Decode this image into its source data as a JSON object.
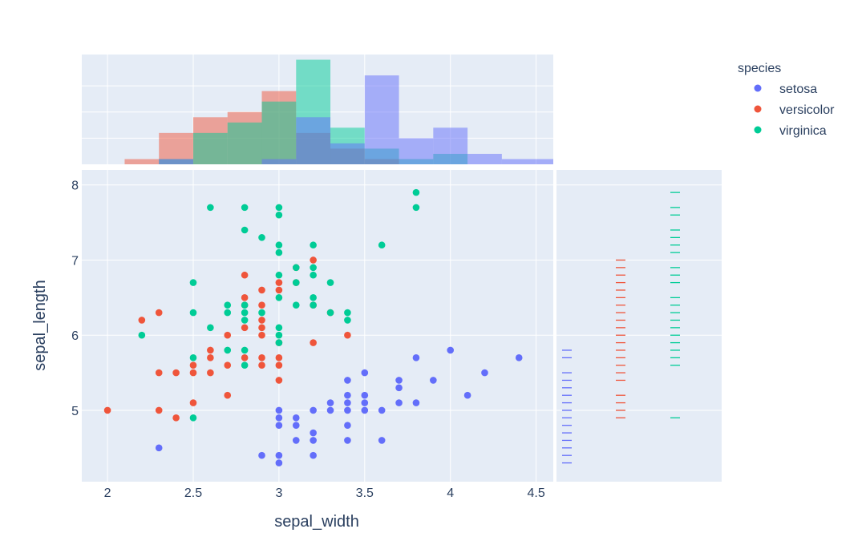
{
  "chart_data": {
    "type": "scatter",
    "title": "",
    "xlabel": "sepal_width",
    "ylabel": "sepal_length",
    "xlim": [
      1.85,
      4.6
    ],
    "ylim": [
      4.05,
      8.2
    ],
    "x_ticks": [
      "2",
      "2.5",
      "3",
      "3.5",
      "4",
      "4.5"
    ],
    "x_tick_values": [
      2,
      2.5,
      3,
      3.5,
      4,
      4.5
    ],
    "y_ticks": [
      "5",
      "6",
      "7",
      "8"
    ],
    "y_tick_values": [
      5,
      6,
      7,
      8
    ],
    "grid": true,
    "legend": {
      "title": "species",
      "position": "top-right",
      "entries": [
        "setosa",
        "versicolor",
        "virginica"
      ]
    },
    "series": [
      {
        "name": "setosa",
        "color": "#636efa",
        "points": [
          [
            2.3,
            4.5
          ],
          [
            2.9,
            4.4
          ],
          [
            3.0,
            4.3
          ],
          [
            3.0,
            4.4
          ],
          [
            3.0,
            4.8
          ],
          [
            3.0,
            4.9
          ],
          [
            3.0,
            5.0
          ],
          [
            3.1,
            4.6
          ],
          [
            3.1,
            4.8
          ],
          [
            3.1,
            4.9
          ],
          [
            3.2,
            4.4
          ],
          [
            3.2,
            4.6
          ],
          [
            3.2,
            4.7
          ],
          [
            3.2,
            5.0
          ],
          [
            3.3,
            5.0
          ],
          [
            3.3,
            5.1
          ],
          [
            3.4,
            4.6
          ],
          [
            3.4,
            4.8
          ],
          [
            3.4,
            5.0
          ],
          [
            3.4,
            5.1
          ],
          [
            3.4,
            5.2
          ],
          [
            3.4,
            5.4
          ],
          [
            3.5,
            5.0
          ],
          [
            3.5,
            5.1
          ],
          [
            3.5,
            5.2
          ],
          [
            3.5,
            5.5
          ],
          [
            3.6,
            4.6
          ],
          [
            3.6,
            5.0
          ],
          [
            3.7,
            5.1
          ],
          [
            3.7,
            5.3
          ],
          [
            3.7,
            5.4
          ],
          [
            3.8,
            5.1
          ],
          [
            3.8,
            5.7
          ],
          [
            3.9,
            5.4
          ],
          [
            4.0,
            5.8
          ],
          [
            4.1,
            5.2
          ],
          [
            4.2,
            5.5
          ],
          [
            4.4,
            5.7
          ]
        ]
      },
      {
        "name": "versicolor",
        "color": "#ef553b",
        "points": [
          [
            2.0,
            5.0
          ],
          [
            2.2,
            6.2
          ],
          [
            2.3,
            5.0
          ],
          [
            2.3,
            5.5
          ],
          [
            2.3,
            6.3
          ],
          [
            2.4,
            4.9
          ],
          [
            2.4,
            5.5
          ],
          [
            2.5,
            5.1
          ],
          [
            2.5,
            5.5
          ],
          [
            2.5,
            5.6
          ],
          [
            2.6,
            5.5
          ],
          [
            2.6,
            5.7
          ],
          [
            2.6,
            5.8
          ],
          [
            2.7,
            5.2
          ],
          [
            2.7,
            5.6
          ],
          [
            2.7,
            6.0
          ],
          [
            2.8,
            5.7
          ],
          [
            2.8,
            6.1
          ],
          [
            2.8,
            6.4
          ],
          [
            2.8,
            6.5
          ],
          [
            2.8,
            6.8
          ],
          [
            2.9,
            5.6
          ],
          [
            2.9,
            5.7
          ],
          [
            2.9,
            6.0
          ],
          [
            2.9,
            6.1
          ],
          [
            2.9,
            6.2
          ],
          [
            2.9,
            6.4
          ],
          [
            2.9,
            6.6
          ],
          [
            3.0,
            5.4
          ],
          [
            3.0,
            5.6
          ],
          [
            3.0,
            5.7
          ],
          [
            3.0,
            5.9
          ],
          [
            3.0,
            6.6
          ],
          [
            3.0,
            6.7
          ],
          [
            3.1,
            6.7
          ],
          [
            3.1,
            6.9
          ],
          [
            3.2,
            5.9
          ],
          [
            3.2,
            6.4
          ],
          [
            3.2,
            7.0
          ],
          [
            3.3,
            6.3
          ],
          [
            3.4,
            6.0
          ]
        ]
      },
      {
        "name": "virginica",
        "color": "#00cc96",
        "points": [
          [
            2.2,
            6.0
          ],
          [
            2.5,
            4.9
          ],
          [
            2.5,
            5.7
          ],
          [
            2.5,
            6.3
          ],
          [
            2.5,
            6.7
          ],
          [
            2.6,
            6.1
          ],
          [
            2.6,
            7.7
          ],
          [
            2.7,
            5.8
          ],
          [
            2.7,
            6.3
          ],
          [
            2.7,
            6.4
          ],
          [
            2.8,
            5.6
          ],
          [
            2.8,
            5.8
          ],
          [
            2.8,
            6.2
          ],
          [
            2.8,
            6.3
          ],
          [
            2.8,
            6.4
          ],
          [
            2.8,
            7.4
          ],
          [
            2.8,
            7.7
          ],
          [
            2.9,
            6.3
          ],
          [
            2.9,
            7.3
          ],
          [
            3.0,
            5.9
          ],
          [
            3.0,
            6.0
          ],
          [
            3.0,
            6.1
          ],
          [
            3.0,
            6.5
          ],
          [
            3.0,
            6.8
          ],
          [
            3.0,
            7.1
          ],
          [
            3.0,
            7.2
          ],
          [
            3.0,
            7.6
          ],
          [
            3.0,
            7.7
          ],
          [
            3.1,
            6.4
          ],
          [
            3.1,
            6.7
          ],
          [
            3.1,
            6.9
          ],
          [
            3.2,
            6.4
          ],
          [
            3.2,
            6.5
          ],
          [
            3.2,
            6.8
          ],
          [
            3.2,
            6.9
          ],
          [
            3.2,
            7.2
          ],
          [
            3.3,
            6.3
          ],
          [
            3.3,
            6.7
          ],
          [
            3.4,
            6.2
          ],
          [
            3.4,
            6.3
          ],
          [
            3.6,
            7.2
          ],
          [
            3.8,
            7.7
          ],
          [
            3.8,
            7.9
          ]
        ]
      }
    ],
    "marginal_x": {
      "type": "histogram",
      "bins": [
        1.9,
        2.1,
        2.3,
        2.5,
        2.7,
        2.9,
        3.1,
        3.3,
        3.5,
        3.7,
        3.9,
        4.1,
        4.3,
        4.5
      ],
      "counts": {
        "setosa": [
          0,
          0,
          1,
          0,
          0,
          1,
          9,
          4,
          17,
          5,
          7,
          2,
          1,
          1
        ],
        "versicolor": [
          0,
          1,
          6,
          9,
          10,
          14,
          6,
          3,
          1,
          0,
          0,
          0,
          0,
          0
        ],
        "virginica": [
          0,
          0,
          1,
          6,
          8,
          12,
          20,
          7,
          3,
          1,
          2,
          0,
          0,
          0
        ]
      }
    },
    "marginal_y": {
      "type": "rug"
    }
  }
}
